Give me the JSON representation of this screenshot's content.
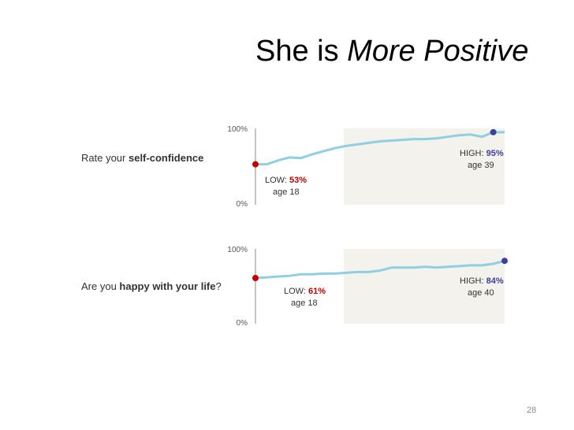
{
  "slide": {
    "title_plain": "She is ",
    "title_emph": "More Positive",
    "page_number": "28"
  },
  "colors": {
    "line": "#8ecfe0",
    "low": "#c00000",
    "high": "#3f3f9f",
    "band": "#f3f2ec",
    "axis": "#888888"
  },
  "chart_data": [
    {
      "type": "line",
      "question_plain": "Rate your ",
      "question_bold": "self-confidence",
      "question_tail": "",
      "ylim": [
        0,
        100
      ],
      "y_ticks": [
        "100%",
        "0%"
      ],
      "x": [
        18,
        19,
        20,
        21,
        22,
        23,
        24,
        25,
        26,
        27,
        28,
        29,
        30,
        31,
        32,
        33,
        34,
        35,
        36,
        37,
        38,
        39,
        40
      ],
      "values": [
        53,
        53,
        58,
        62,
        61,
        66,
        70,
        74,
        77,
        79,
        81,
        83,
        84,
        85,
        86,
        86,
        87,
        89,
        91,
        92,
        89,
        95,
        95
      ],
      "low": {
        "label": "LOW: ",
        "value": "53%",
        "age": "age 18",
        "x": 18,
        "y": 53
      },
      "high": {
        "label": "HIGH: ",
        "value": "95%",
        "age": "age 39",
        "x": 39,
        "y": 95
      }
    },
    {
      "type": "line",
      "question_plain": "Are you ",
      "question_bold": "happy with your life",
      "question_tail": "?",
      "ylim": [
        0,
        100
      ],
      "y_ticks": [
        "100%",
        "0%"
      ],
      "x": [
        18,
        19,
        20,
        21,
        22,
        23,
        24,
        25,
        26,
        27,
        28,
        29,
        30,
        31,
        32,
        33,
        34,
        35,
        36,
        37,
        38,
        39,
        40
      ],
      "values": [
        61,
        62,
        63,
        64,
        66,
        66,
        67,
        67,
        68,
        69,
        69,
        71,
        75,
        75,
        75,
        76,
        75,
        76,
        77,
        78,
        78,
        80,
        84
      ],
      "low": {
        "label": "LOW: ",
        "value": "61%",
        "age": "age 18",
        "x": 18,
        "y": 61
      },
      "high": {
        "label": "HIGH: ",
        "value": "84%",
        "age": "age 40",
        "x": 40,
        "y": 84
      }
    }
  ]
}
